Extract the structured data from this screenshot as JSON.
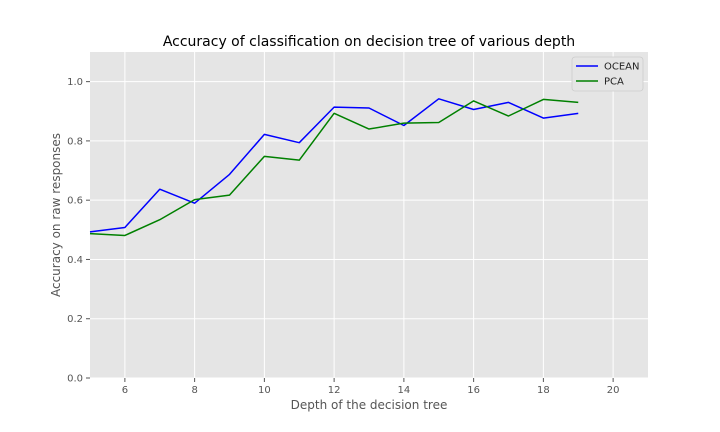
{
  "chart_data": {
    "type": "line",
    "title": "Accuracy of classification on decision tree of various depth",
    "xlabel": "Depth of the decision tree",
    "ylabel": "Accuracy on raw responses",
    "xlim": [
      5,
      21
    ],
    "ylim": [
      0,
      1.1
    ],
    "xticks": [
      6,
      8,
      10,
      12,
      14,
      16,
      18,
      20
    ],
    "yticks": [
      0.0,
      0.2,
      0.4,
      0.6,
      0.8,
      1.0
    ],
    "xtick_labels": [
      "6",
      "8",
      "10",
      "12",
      "14",
      "16",
      "18",
      "20"
    ],
    "ytick_labels": [
      "0.0",
      "0.2",
      "0.4",
      "0.6",
      "0.8",
      "1.0"
    ],
    "x": [
      5,
      6,
      7,
      8,
      9,
      10,
      11,
      12,
      13,
      14,
      15,
      16,
      17,
      18,
      19
    ],
    "series": [
      {
        "name": "OCEAN",
        "color": "#0000ff",
        "values": [
          0.493,
          0.508,
          0.637,
          0.59,
          0.687,
          0.822,
          0.794,
          0.914,
          0.911,
          0.852,
          0.942,
          0.906,
          0.93,
          0.877,
          0.893
        ]
      },
      {
        "name": "PCA",
        "color": "#008000",
        "values": [
          0.487,
          0.481,
          0.534,
          0.602,
          0.617,
          0.748,
          0.735,
          0.893,
          0.84,
          0.86,
          0.862,
          0.935,
          0.884,
          0.94,
          0.93
        ]
      }
    ],
    "grid": true,
    "legend": "top-right",
    "background": "#e5e5e5",
    "grid_color": "#ffffff"
  }
}
